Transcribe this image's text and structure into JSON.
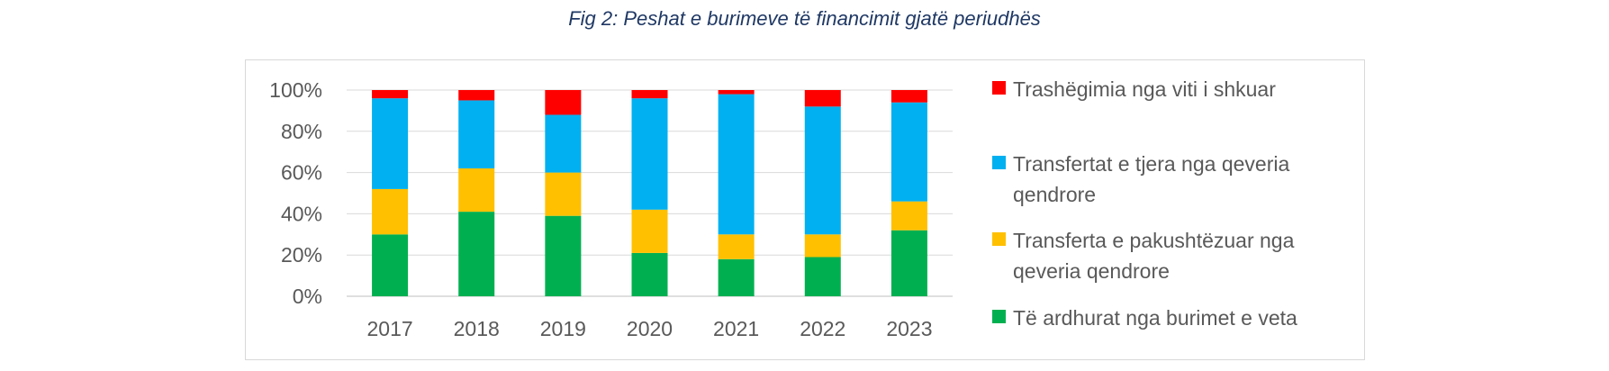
{
  "title": "Fig 2: Peshat e burimeve të financimit  gjatë periudhës",
  "colors": {
    "burimet_veta": "#00b050",
    "pakushtezuar": "#ffc000",
    "te_tjera": "#00b0f0",
    "trashegimia": "#ff0000"
  },
  "chart_data": {
    "type": "bar",
    "stacked": true,
    "categories": [
      "2017",
      "2018",
      "2019",
      "2020",
      "2021",
      "2022",
      "2023"
    ],
    "series": [
      {
        "name": "Të ardhurat nga burimet e veta",
        "values": [
          30,
          41,
          39,
          21,
          18,
          19,
          32
        ],
        "color": "#00b050"
      },
      {
        "name": "Transferta e pakushtëzuar nga qeveria qendrore",
        "values": [
          22,
          21,
          21,
          21,
          12,
          11,
          14
        ],
        "color": "#ffc000"
      },
      {
        "name": "Transfertat e tjera nga qeveria qendrore",
        "values": [
          44,
          33,
          28,
          54,
          68,
          62,
          48
        ],
        "color": "#00b0f0"
      },
      {
        "name": "Trashëgimia nga viti i shkuar",
        "values": [
          4,
          5,
          12,
          4,
          2,
          8,
          6
        ],
        "color": "#ff0000"
      }
    ],
    "y_ticks": [
      "0%",
      "20%",
      "40%",
      "60%",
      "80%",
      "100%"
    ],
    "ylim": [
      0,
      100
    ],
    "grid": true,
    "legend_position": "right"
  },
  "legend": [
    {
      "color": "#ff0000",
      "lines": [
        "Trashëgimia nga viti i shkuar"
      ]
    },
    {
      "color": "#00b0f0",
      "lines": [
        "Transfertat e tjera nga qeveria",
        "qendrore"
      ]
    },
    {
      "color": "#ffc000",
      "lines": [
        "Transferta e pakushtëzuar nga",
        "qeveria qendrore"
      ]
    },
    {
      "color": "#00b050",
      "lines": [
        "Të ardhurat nga burimet e veta"
      ]
    }
  ]
}
